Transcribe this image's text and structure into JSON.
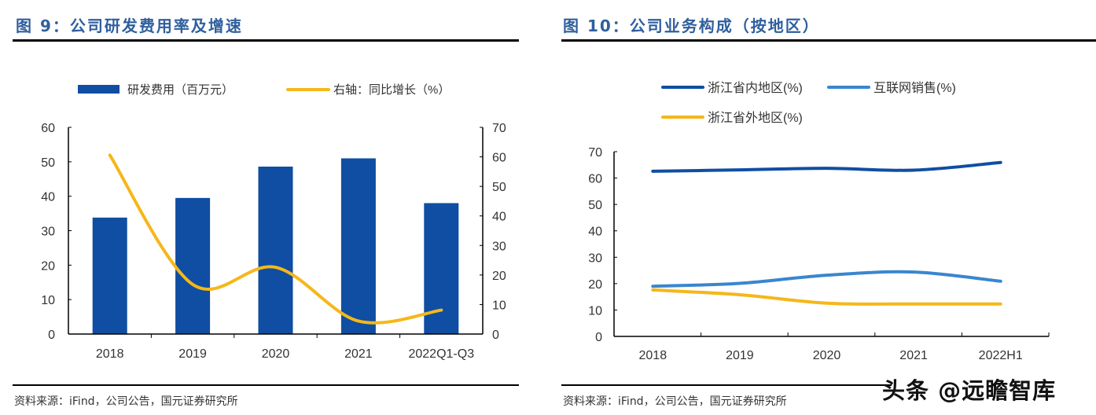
{
  "left": {
    "title": "图 9：公司研发费用率及增速",
    "source": "资料来源：iFind，公司公告，国元证券研究所"
  },
  "right": {
    "title": "图 10：公司业务构成（按地区）",
    "source": "资料来源：iFind，公司公告，国元证券研究所"
  },
  "watermark": "头条 @远瞻智库",
  "chart_data": [
    {
      "type": "bar+line",
      "categories": [
        "2018",
        "2019",
        "2020",
        "2021",
        "2022Q1-Q3"
      ],
      "series": [
        {
          "name": "研发费用（百万元）",
          "type": "bar",
          "axis": "left",
          "color": "#0f4ea2",
          "values": [
            33.8,
            39.5,
            48.6,
            51.0,
            38.0
          ]
        },
        {
          "name": "右轴：同比增长（%）",
          "type": "line",
          "axis": "right",
          "color": "#f5b719",
          "smooth": true,
          "values": [
            60.6,
            16.8,
            22.6,
            4.4,
            8.1
          ]
        }
      ],
      "ylim": [
        0,
        60
      ],
      "yticks": [
        0,
        10,
        20,
        30,
        40,
        50,
        60
      ],
      "y2lim": [
        0,
        70
      ],
      "y2ticks": [
        0,
        10,
        20,
        30,
        40,
        50,
        60,
        70
      ],
      "legend": "top",
      "grid": false
    },
    {
      "type": "line",
      "categories": [
        "2018",
        "2019",
        "2020",
        "2021",
        "2022H1"
      ],
      "series": [
        {
          "name": "浙江省内地区(%)",
          "color": "#0f4ea2",
          "values": [
            62.6,
            63.1,
            63.7,
            63.0,
            65.9
          ]
        },
        {
          "name": "互联网销售(%)",
          "color": "#3a86cf",
          "values": [
            19.0,
            20.1,
            23.2,
            24.4,
            20.9
          ]
        },
        {
          "name": "浙江省外地区(%)",
          "color": "#f5b719",
          "values": [
            17.6,
            15.8,
            12.6,
            12.3,
            12.3
          ]
        }
      ],
      "ylim": [
        0,
        70
      ],
      "yticks": [
        0,
        10,
        20,
        30,
        40,
        50,
        60,
        70
      ],
      "legend": "top",
      "grid": false,
      "smooth": true
    }
  ]
}
